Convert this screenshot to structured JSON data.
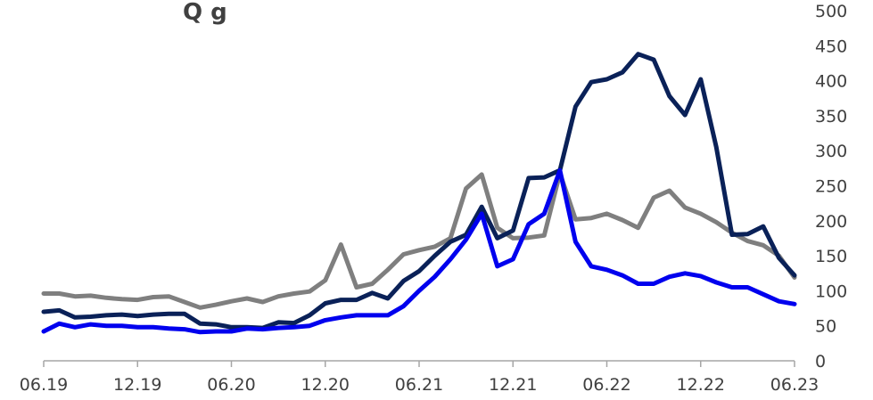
{
  "chart_data": {
    "type": "line",
    "title": "",
    "xlabel": "",
    "ylabel": "",
    "ylim": [
      0,
      500
    ],
    "yticks": [
      0,
      50,
      100,
      150,
      200,
      250,
      300,
      350,
      400,
      450,
      500
    ],
    "y_axis_side": "right",
    "grid": false,
    "legend": "none",
    "x_start": "06.19",
    "x_end": "06.23",
    "x_tick_labels": [
      "06.19",
      "12.19",
      "06.20",
      "12.20",
      "06.21",
      "12.21",
      "06.22",
      "12.22",
      "06.23"
    ],
    "series": [
      {
        "color": "#7f7f7f",
        "values": [
          96,
          96,
          92,
          93,
          90,
          88,
          87,
          91,
          92,
          84,
          76,
          80,
          85,
          89,
          84,
          92,
          96,
          99,
          115,
          166,
          105,
          110,
          130,
          152,
          158,
          163,
          175,
          246,
          266,
          190,
          175,
          176,
          179,
          268,
          202,
          204,
          210,
          201,
          190,
          233,
          243,
          219,
          210,
          198,
          183,
          171,
          165,
          150,
          119
        ]
      },
      {
        "color": "#0a2158",
        "values": [
          70,
          72,
          62,
          63,
          65,
          66,
          64,
          66,
          67,
          67,
          53,
          52,
          48,
          48,
          47,
          55,
          54,
          65,
          82,
          87,
          87,
          97,
          89,
          114,
          128,
          150,
          170,
          180,
          220,
          175,
          186,
          261,
          262,
          272,
          363,
          398,
          402,
          412,
          438,
          430,
          378,
          351,
          402,
          305,
          180,
          181,
          192,
          147,
          122
        ]
      },
      {
        "color": "#0000ee",
        "values": [
          42,
          53,
          48,
          52,
          50,
          50,
          48,
          48,
          46,
          45,
          41,
          42,
          42,
          46,
          45,
          47,
          48,
          50,
          58,
          62,
          65,
          65,
          65,
          78,
          100,
          120,
          145,
          173,
          210,
          135,
          145,
          195,
          210,
          272,
          170,
          135,
          130,
          122,
          110,
          110,
          120,
          125,
          121,
          112,
          105,
          105,
          95,
          85,
          81
        ]
      }
    ]
  },
  "header": {
    "title_fragment": "Q    g"
  }
}
